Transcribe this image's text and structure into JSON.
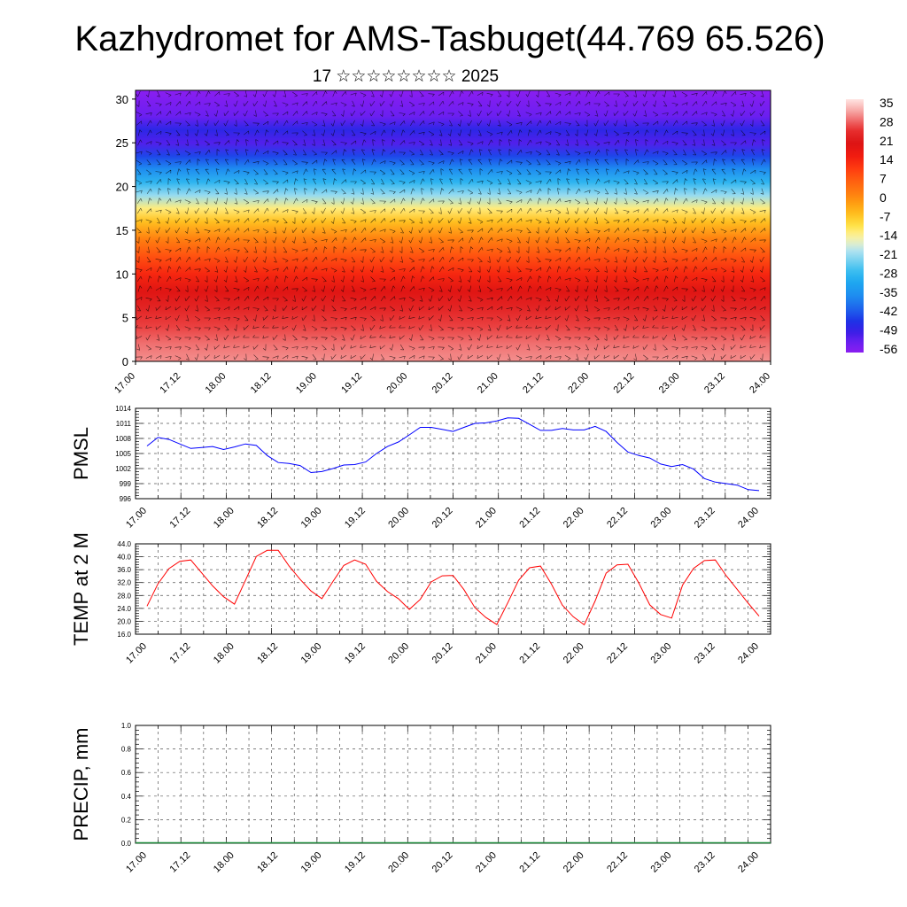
{
  "title": "Kazhydromet for AMS-Tasbuget(44.769 65.526)",
  "subtitle": "17 ☆☆☆☆☆☆☆☆ 2025",
  "x_tick_labels": [
    "17.00",
    "17.12",
    "18.00",
    "18.12",
    "19.00",
    "19.12",
    "20.00",
    "20.12",
    "21.00",
    "21.12",
    "22.00",
    "22.12",
    "23.00",
    "23.12",
    "24.00"
  ],
  "chart_data": [
    {
      "type": "heatmap",
      "title": "Kazhydromet for AMS-Tasbuget(44.769 65.526)",
      "subtitle": "17 ☆☆☆☆☆☆☆☆ 2025",
      "x_ticks": [
        "17.00",
        "17.12",
        "18.00",
        "18.12",
        "19.00",
        "19.12",
        "20.00",
        "20.12",
        "21.00",
        "21.12",
        "22.00",
        "22.12",
        "23.00",
        "23.12",
        "24.00"
      ],
      "y_ticks": [
        0,
        5,
        10,
        15,
        20,
        25,
        30
      ],
      "ylim": [
        0,
        31
      ],
      "colorbar_labels": [
        "35",
        "28",
        "21",
        "14",
        "7",
        "0",
        "-7",
        "-14",
        "-21",
        "-28",
        "-35",
        "-42",
        "-49",
        "-56"
      ],
      "colorbar_range": [
        -60,
        39
      ],
      "temperature_by_height": [
        {
          "y": 0,
          "t": 33
        },
        {
          "y": 2,
          "t": 31
        },
        {
          "y": 4,
          "t": 28
        },
        {
          "y": 6,
          "t": 25
        },
        {
          "y": 8,
          "t": 21
        },
        {
          "y": 10,
          "t": 15
        },
        {
          "y": 12,
          "t": 9
        },
        {
          "y": 14,
          "t": 2
        },
        {
          "y": 16,
          "t": -6
        },
        {
          "y": 17.5,
          "t": -13
        },
        {
          "y": 19,
          "t": -22
        },
        {
          "y": 20.5,
          "t": -30
        },
        {
          "y": 22,
          "t": -38
        },
        {
          "y": 23.5,
          "t": -46
        },
        {
          "y": 25,
          "t": -54
        },
        {
          "y": 26.5,
          "t": -50
        },
        {
          "y": 28,
          "t": -56
        },
        {
          "y": 31,
          "t": -60
        }
      ],
      "surface_warm_days": [
        "17.12",
        "18.12",
        "19.12",
        "20.12",
        "21.12",
        "22.12",
        "23.12"
      ],
      "wind_barbs": true
    },
    {
      "type": "line",
      "ylabel": "PMSL",
      "y_ticks": [
        996,
        999,
        1002,
        1005,
        1008,
        1011,
        1014
      ],
      "ylim": [
        996,
        1014
      ],
      "x_ticks": [
        "17.00",
        "17.12",
        "18.00",
        "18.12",
        "19.00",
        "19.12",
        "20.00",
        "20.12",
        "21.00",
        "21.12",
        "22.00",
        "22.12",
        "23.00",
        "23.12",
        "24.00"
      ],
      "series": [
        {
          "color": "#0000ff",
          "x": [
            0,
            3,
            6,
            9,
            12,
            15,
            18,
            21,
            24,
            27,
            30,
            33,
            36,
            39,
            42,
            45,
            48,
            51,
            54,
            57,
            60,
            63,
            66,
            69,
            72,
            75,
            78,
            81,
            84,
            87,
            90,
            93,
            96,
            99,
            102,
            105,
            108,
            111,
            114,
            117,
            120,
            123,
            126,
            129,
            132,
            135,
            138,
            141,
            144,
            147,
            150,
            153,
            156,
            159,
            162,
            165,
            168
          ],
          "values": [
            1006.5,
            1008.2,
            1007.8,
            1006.9,
            1006.0,
            1006.2,
            1006.4,
            1005.8,
            1006.3,
            1006.9,
            1006.6,
            1004.6,
            1003.2,
            1003.0,
            1002.6,
            1001.2,
            1001.4,
            1002.0,
            1002.7,
            1002.8,
            1003.3,
            1005.0,
            1006.4,
            1007.3,
            1008.7,
            1010.2,
            1010.2,
            1009.8,
            1009.4,
            1010.2,
            1011.0,
            1011.1,
            1011.5,
            1012.1,
            1012.0,
            1010.8,
            1009.6,
            1009.6,
            1010.0,
            1009.7,
            1009.7,
            1010.4,
            1009.4,
            1007.2,
            1005.3,
            1004.6,
            1004.1,
            1002.9,
            1002.4,
            1002.8,
            1001.9,
            1000.0,
            999.3,
            999.0,
            998.7,
            997.8,
            997.6
          ]
        }
      ]
    },
    {
      "type": "line",
      "ylabel": "TEMP at 2 M",
      "y_ticks": [
        16.0,
        20.0,
        24.0,
        28.0,
        32.0,
        36.0,
        40.0,
        44.0
      ],
      "ylim": [
        16,
        44
      ],
      "x_ticks": [
        "17.00",
        "17.12",
        "18.00",
        "18.12",
        "19.00",
        "19.12",
        "20.00",
        "20.12",
        "21.00",
        "21.12",
        "22.00",
        "22.12",
        "23.00",
        "23.12",
        "24.00"
      ],
      "series": [
        {
          "color": "#ff0000",
          "x": [
            0,
            3,
            6,
            9,
            12,
            15,
            18,
            21,
            24,
            27,
            30,
            33,
            36,
            39,
            42,
            45,
            48,
            51,
            54,
            57,
            60,
            63,
            66,
            69,
            72,
            75,
            78,
            81,
            84,
            87,
            90,
            93,
            96,
            99,
            102,
            105,
            108,
            111,
            114,
            117,
            120,
            123,
            126,
            129,
            132,
            135,
            138,
            141,
            144,
            147,
            150,
            153,
            156,
            159,
            162,
            165,
            168
          ],
          "values": [
            24.7,
            31.6,
            36.3,
            38.6,
            39.0,
            35.0,
            31.0,
            27.6,
            25.3,
            32.7,
            40.1,
            42.0,
            42.0,
            37.1,
            33.0,
            29.4,
            27.0,
            32.3,
            37.3,
            39.0,
            37.7,
            32.4,
            29.2,
            27.0,
            23.7,
            26.8,
            32.2,
            34.1,
            34.2,
            29.8,
            24.2,
            21.2,
            19.0,
            25.7,
            32.7,
            36.6,
            37.1,
            31.5,
            25.0,
            21.4,
            18.9,
            26.3,
            34.9,
            37.5,
            37.7,
            31.8,
            25.1,
            22.1,
            21.0,
            31.2,
            36.4,
            38.8,
            39.0,
            34.1,
            29.9,
            25.6,
            21.6
          ]
        }
      ]
    },
    {
      "type": "bar",
      "ylabel": "PRECIP, mm",
      "y_ticks": [
        0.0,
        0.2,
        0.4,
        0.6,
        0.8,
        1.0
      ],
      "ylim": [
        0,
        1
      ],
      "x_ticks": [
        "17.00",
        "17.12",
        "18.00",
        "18.12",
        "19.00",
        "19.12",
        "20.00",
        "20.12",
        "21.00",
        "21.12",
        "22.00",
        "22.12",
        "23.00",
        "23.12",
        "24.00"
      ],
      "values": []
    }
  ]
}
